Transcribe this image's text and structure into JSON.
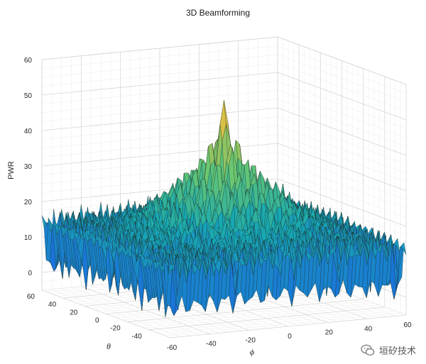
{
  "chart_data": {
    "type": "surface",
    "title": "3D Beamforming",
    "xlabel": "ϕ",
    "ylabel": "θ",
    "zlabel": "PWR",
    "xlim": [
      -60,
      60
    ],
    "ylim": [
      -60,
      60
    ],
    "zlim": [
      -5,
      60
    ],
    "x_ticks": [
      -60,
      -40,
      -20,
      0,
      20,
      40,
      60
    ],
    "y_ticks": [
      -40,
      -20,
      0,
      20,
      40,
      60
    ],
    "z_ticks": [
      0,
      10,
      20,
      30,
      40,
      50,
      60
    ],
    "grid": true,
    "colormap": "parula",
    "peak": {
      "phi": 0,
      "theta": 0,
      "pwr": 52
    },
    "floor_pwr": 20,
    "sidelobe_pwr": 38
  },
  "watermark": {
    "text": "垣矽技术",
    "icon": "wechat-icon"
  }
}
